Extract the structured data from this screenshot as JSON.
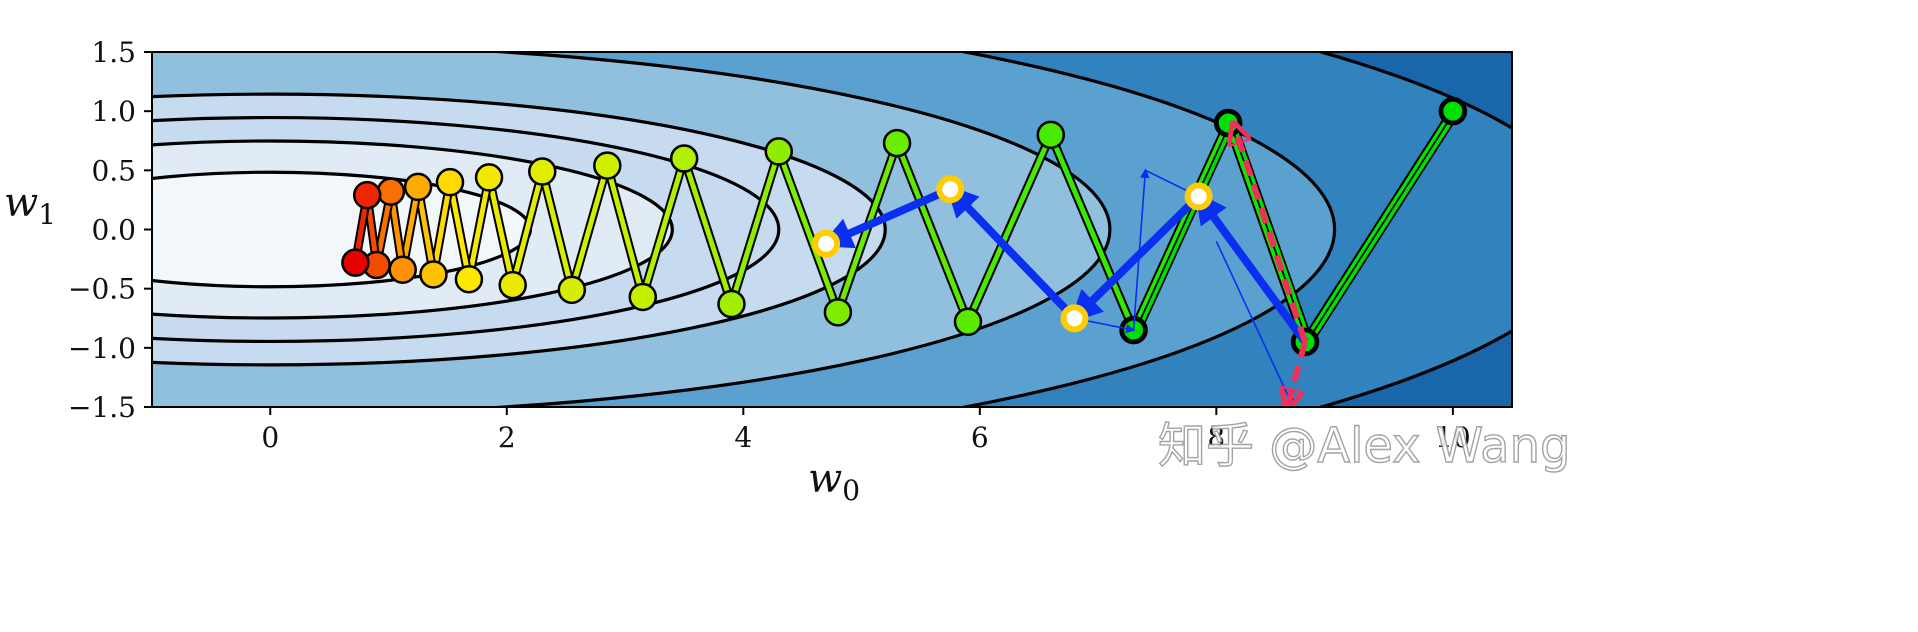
{
  "chart_data": {
    "type": "scatter",
    "xlabel": "w",
    "xlabel_sub": "0",
    "ylabel": "w",
    "ylabel_sub": "1",
    "xlim": [
      -1.0,
      10.5
    ],
    "ylim": [
      -1.5,
      1.5
    ],
    "x_ticks": [
      0,
      2,
      4,
      6,
      8,
      10
    ],
    "x_tick_labels": [
      "0",
      "2",
      "4",
      "6",
      "8",
      "10"
    ],
    "y_ticks": [
      1.5,
      1.0,
      0.5,
      0.0,
      -0.5,
      -1.0,
      -1.5
    ],
    "y_tick_labels": [
      "1.5",
      "1.0",
      "0.5",
      "0.0",
      "−0.5",
      "−1.0",
      "−1.5"
    ],
    "contour_background_colors": [
      "#f2f7fc",
      "#e1ebf6",
      "#c6dbef",
      "#91c0df",
      "#5aa1cf",
      "#3182bd",
      "#1a66aa",
      "#0b4c8f"
    ],
    "contour_line_color": "#000000",
    "path_a": [
      [
        10.0,
        1.0
      ],
      [
        8.75,
        -0.95
      ],
      [
        8.1,
        0.9
      ],
      [
        7.3,
        -0.85
      ],
      [
        6.6,
        0.8
      ],
      [
        5.9,
        -0.78
      ],
      [
        5.3,
        0.73
      ],
      [
        4.8,
        -0.7
      ],
      [
        4.3,
        0.66
      ],
      [
        3.9,
        -0.63
      ],
      [
        3.5,
        0.6
      ],
      [
        3.15,
        -0.57
      ],
      [
        2.85,
        0.54
      ],
      [
        2.55,
        -0.51
      ],
      [
        2.3,
        0.49
      ],
      [
        2.05,
        -0.47
      ],
      [
        1.85,
        0.44
      ],
      [
        1.68,
        -0.42
      ],
      [
        1.52,
        0.4
      ],
      [
        1.38,
        -0.38
      ],
      [
        1.25,
        0.36
      ],
      [
        1.12,
        -0.34
      ],
      [
        1.02,
        0.32
      ],
      [
        0.9,
        -0.3
      ],
      [
        0.82,
        0.29
      ],
      [
        0.72,
        -0.28
      ]
    ],
    "path_b": [
      [
        10.0,
        1.0
      ],
      [
        8.75,
        -0.95
      ],
      [
        8.1,
        0.9
      ],
      [
        7.3,
        -0.85
      ]
    ],
    "nesterov_lookahead_points": [
      [
        7.85,
        0.28
      ],
      [
        6.8,
        -0.75
      ],
      [
        5.75,
        0.34
      ],
      [
        4.7,
        -0.12
      ]
    ],
    "nesterov_arrows_thick": [
      [
        [
          8.75,
          -0.95
        ],
        [
          7.85,
          0.28
        ]
      ],
      [
        [
          7.85,
          0.28
        ],
        [
          6.8,
          -0.75
        ]
      ],
      [
        [
          6.8,
          -0.75
        ],
        [
          5.75,
          0.34
        ]
      ],
      [
        [
          5.75,
          0.34
        ],
        [
          4.7,
          -0.12
        ]
      ]
    ],
    "nesterov_arrows_thin": [
      [
        [
          8.0,
          -0.1
        ],
        [
          8.65,
          -1.5
        ]
      ],
      [
        [
          6.8,
          -0.75
        ],
        [
          7.3,
          -0.85
        ]
      ],
      [
        [
          7.3,
          -0.85
        ],
        [
          7.4,
          0.5
        ]
      ],
      [
        [
          7.4,
          0.5
        ],
        [
          7.85,
          0.28
        ]
      ]
    ],
    "dashed_arrows": [
      [
        [
          8.75,
          -0.95
        ],
        [
          8.15,
          0.88
        ]
      ],
      [
        [
          8.75,
          -0.95
        ],
        [
          8.6,
          -1.5
        ]
      ]
    ],
    "colors": {
      "path_b_fill": "#00e000",
      "lookahead_fill": "#ffffff",
      "lookahead_stroke": "#ffcc00",
      "arrow_blue": "#0a2ff0",
      "arrow_red": "#f0305a",
      "marker_stroke": "#000000"
    }
  },
  "watermark": "知乎 @Alex Wang"
}
